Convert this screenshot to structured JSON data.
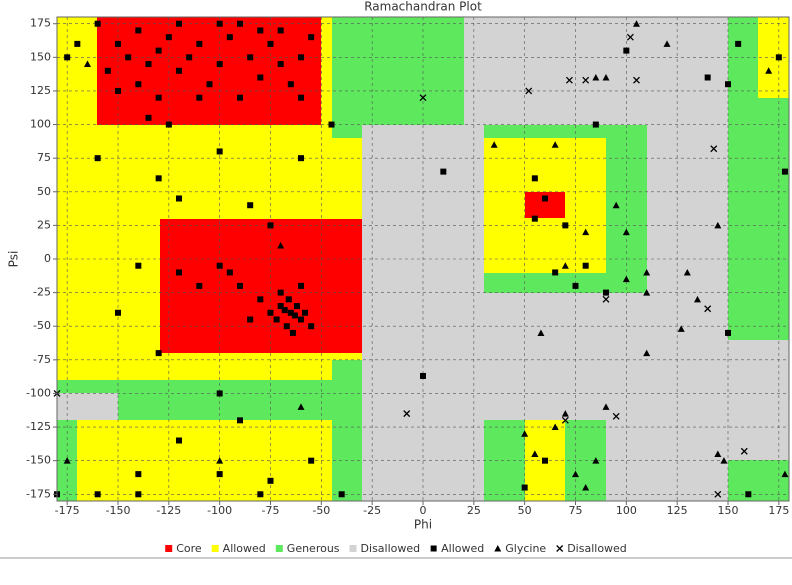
{
  "chart_data": {
    "type": "scatter",
    "title": "Ramachandran Plot",
    "xlabel": "Phi",
    "ylabel": "Psi",
    "xlim": [
      -180,
      180
    ],
    "ylim": [
      -180,
      180
    ],
    "xticks": [
      -175,
      -150,
      -125,
      -100,
      -75,
      -50,
      -25,
      0,
      25,
      50,
      75,
      100,
      125,
      150,
      175
    ],
    "yticks": [
      -175,
      -150,
      -125,
      -100,
      -75,
      -50,
      -25,
      0,
      25,
      50,
      75,
      100,
      125,
      150,
      175
    ],
    "grid": true,
    "legend": "bottom",
    "regions": [
      {
        "name": "Core",
        "color": "#ff0000"
      },
      {
        "name": "Allowed",
        "color": "#ffff00"
      },
      {
        "name": "Generous",
        "color": "#5ee85e"
      },
      {
        "name": "Disallowed",
        "color": "#d3d3d3"
      }
    ],
    "series": [
      {
        "name": "Allowed",
        "color": "#000000",
        "marker": "square",
        "x": [
          -150,
          -145,
          -140,
          -135,
          -130,
          -125,
          -120,
          -115,
          -110,
          -105,
          -100,
          -95,
          -90,
          -85,
          -80,
          -75,
          -70,
          -65,
          -60,
          -155,
          -160,
          -150,
          -140,
          -130,
          -120,
          -110,
          -100,
          -90,
          -80,
          -70,
          -135,
          -125,
          -60,
          -55,
          -65,
          -63,
          -68,
          -60,
          -70,
          -67,
          -62,
          -72,
          -58,
          -66,
          -75,
          -64,
          -80,
          -55,
          -70,
          -85,
          -60,
          -90,
          -95,
          -100,
          -110,
          -120,
          -140,
          -160,
          -130,
          -120,
          -100,
          -85,
          -75,
          -60,
          -45,
          -150,
          -130,
          -100,
          -90,
          -120,
          -140,
          -160,
          -100,
          -80,
          -75,
          -55,
          -40,
          -140,
          -180,
          10,
          0,
          50,
          55,
          60,
          55,
          70,
          80,
          65,
          90,
          75,
          85,
          60,
          100,
          140,
          150,
          155,
          175,
          178,
          160,
          150,
          -170,
          -175
        ],
        "y": [
          160,
          150,
          170,
          145,
          155,
          165,
          140,
          150,
          160,
          130,
          145,
          165,
          120,
          150,
          135,
          160,
          145,
          130,
          150,
          140,
          175,
          125,
          130,
          120,
          175,
          120,
          175,
          175,
          170,
          170,
          105,
          100,
          120,
          165,
          -40,
          -42,
          -38,
          -45,
          -35,
          -50,
          -35,
          -45,
          -40,
          -30,
          -40,
          -55,
          -30,
          -50,
          -25,
          -45,
          -20,
          -20,
          -10,
          -5,
          -20,
          -10,
          -5,
          75,
          60,
          45,
          80,
          40,
          25,
          75,
          100,
          -40,
          -70,
          -100,
          -120,
          -135,
          -160,
          -175,
          -160,
          -175,
          -165,
          -150,
          -175,
          -175,
          -175,
          65,
          -87,
          -170,
          60,
          45,
          30,
          25,
          -5,
          -10,
          -25,
          -20,
          100,
          -150,
          155,
          135,
          130,
          160,
          150,
          65,
          -175,
          -55,
          160,
          150
        ]
      },
      {
        "name": "Glycine",
        "color": "#000000",
        "marker": "triangle",
        "x": [
          -175,
          -165,
          -100,
          -60,
          -70,
          35,
          50,
          55,
          65,
          70,
          80,
          85,
          90,
          95,
          100,
          110,
          105,
          120,
          130,
          135,
          127,
          145,
          110,
          100,
          55,
          75,
          145,
          148,
          178,
          170,
          85,
          90,
          65,
          110,
          70,
          80,
          58
        ],
        "y": [
          -150,
          145,
          -150,
          -110,
          10,
          85,
          -130,
          -145,
          -125,
          -115,
          -170,
          -150,
          -110,
          40,
          20,
          -70,
          175,
          160,
          -10,
          -30,
          -52,
          25,
          -25,
          -15,
          -145,
          -160,
          -145,
          -150,
          -160,
          140,
          135,
          135,
          85,
          -10,
          -5,
          20,
          -55
        ]
      },
      {
        "name": "Disallowed",
        "color": "#000000",
        "marker": "x",
        "x": [
          -180,
          -8,
          0,
          52,
          72,
          80,
          102,
          105,
          143,
          140,
          95,
          158,
          70,
          90,
          145
        ],
        "y": [
          -100,
          -115,
          120,
          125,
          133,
          133,
          165,
          133,
          82,
          -37,
          -117,
          -143,
          -120,
          -30,
          -175
        ]
      }
    ]
  }
}
